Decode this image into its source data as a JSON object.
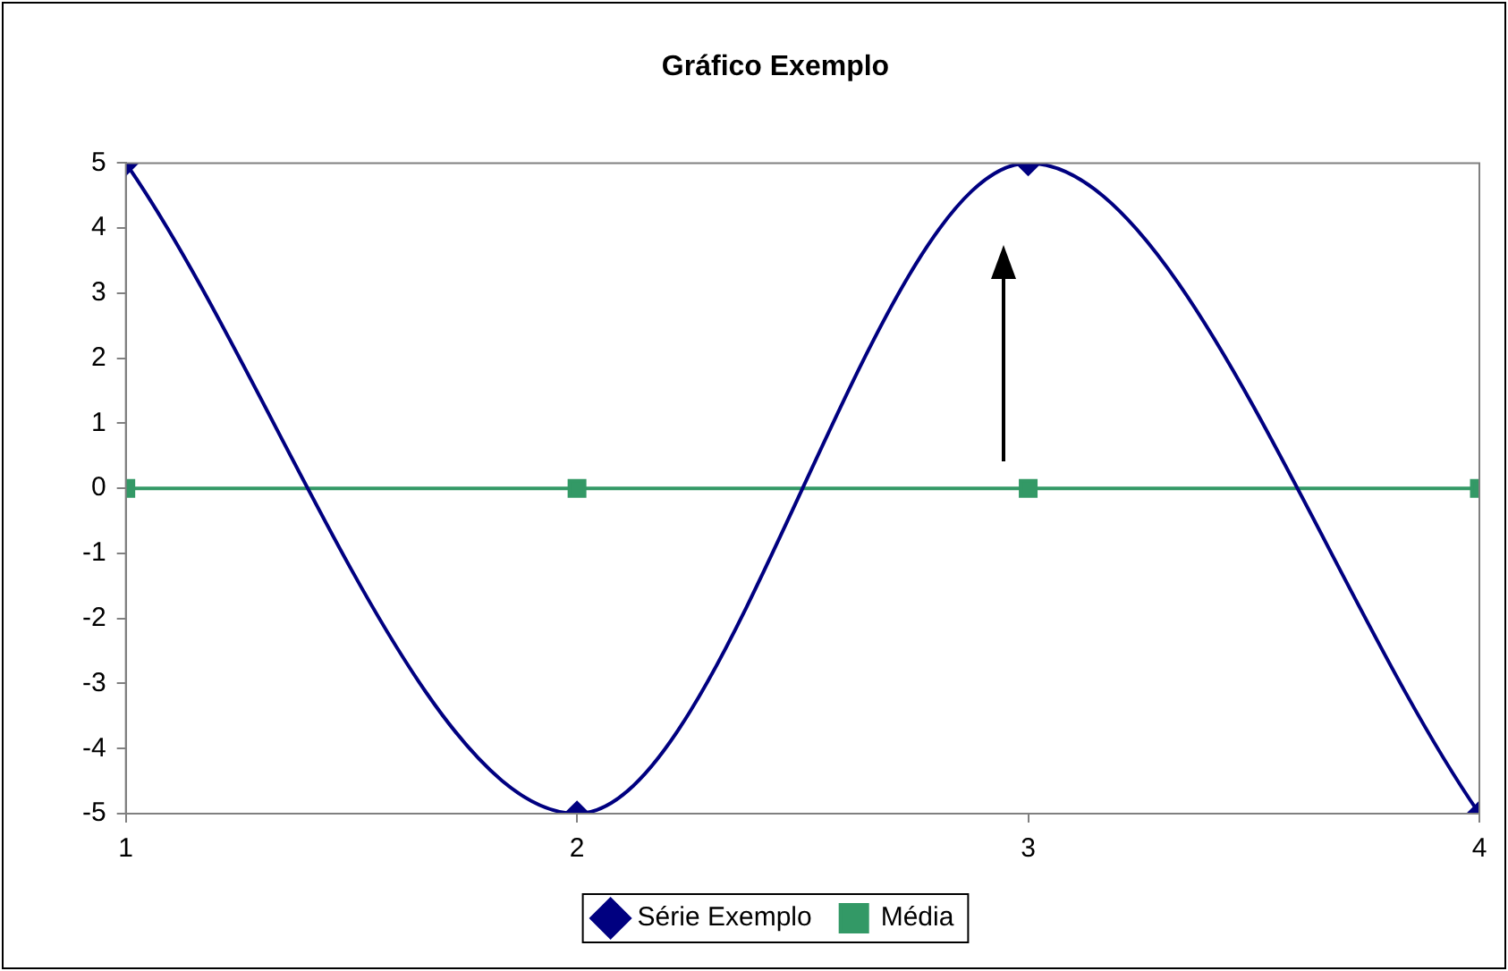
{
  "chart_data": {
    "type": "line",
    "title": "Gráfico Exemplo",
    "x": [
      1,
      2,
      3,
      4
    ],
    "series": [
      {
        "name": "Série Exemplo",
        "color": "#000080",
        "values": [
          5,
          -5,
          5,
          -5
        ],
        "marker": "diamond"
      },
      {
        "name": "Média",
        "color": "#339966",
        "values": [
          0,
          0,
          0,
          0
        ],
        "marker": "square"
      }
    ],
    "xlim": [
      1,
      4
    ],
    "xticks": [
      1,
      2,
      3,
      4
    ],
    "ylim": [
      -5,
      5
    ],
    "yticks": [
      -5,
      -4,
      -3,
      -2,
      -1,
      0,
      1,
      2,
      3,
      4,
      5
    ],
    "grid": false,
    "legend": "bottom",
    "line_style": "solid"
  }
}
